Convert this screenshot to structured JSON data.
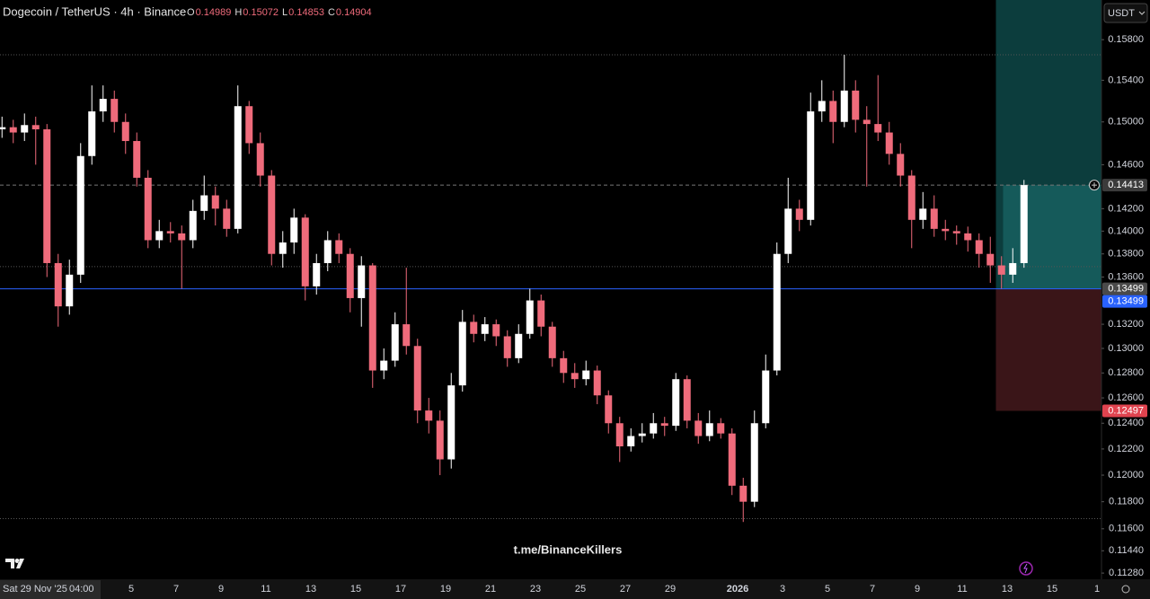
{
  "chart_data": {
    "type": "candlestick",
    "title": "Dogecoin / TetherUS · 4h · Binance",
    "ohlc_legend": [
      {
        "label": "O",
        "value": 0.14989
      },
      {
        "label": "H",
        "value": 0.15072
      },
      {
        "label": "L",
        "value": 0.14853
      },
      {
        "label": "C",
        "value": 0.14904
      }
    ],
    "currency": "USDT",
    "watermark": "t.me/BinanceKillers",
    "log_scale": true,
    "up_color": "#ffffff",
    "down_color": "#ef6b7b",
    "open": [
      0.1493,
      0.1495,
      0.149,
      0.1497,
      0.1493,
      0.1372,
      0.1335,
      0.1362,
      0.1468,
      0.151,
      0.1522,
      0.15,
      0.1482,
      0.1448,
      0.1392,
      0.14,
      0.1398,
      0.1392,
      0.1418,
      0.1432,
      0.142,
      0.1402,
      0.1515,
      0.148,
      0.145,
      0.138,
      0.139,
      0.1412,
      0.1352,
      0.1372,
      0.1392,
      0.138,
      0.1342,
      0.137,
      0.1282,
      0.129,
      0.132,
      0.1302,
      0.125,
      0.1242,
      0.1212,
      0.127,
      0.1322,
      0.1312,
      0.132,
      0.131,
      0.1292,
      0.1312,
      0.134,
      0.1318,
      0.1292,
      0.128,
      0.1275,
      0.1282,
      0.1262,
      0.124,
      0.1222,
      0.123,
      0.1232,
      0.124,
      0.1238,
      0.1275,
      0.1242,
      0.123,
      0.124,
      0.1232,
      0.1192,
      0.118,
      0.124,
      0.1282,
      0.138,
      0.142,
      0.141,
      0.151,
      0.152,
      0.15,
      0.153,
      0.1502,
      0.1498,
      0.149,
      0.147,
      0.145,
      0.141,
      0.142,
      0.1402,
      0.14,
      0.1398,
      0.1392,
      0.138,
      0.137,
      0.1362,
      0.1372
    ],
    "high": [
      0.1505,
      0.1502,
      0.1508,
      0.1505,
      0.1498,
      0.138,
      0.1375,
      0.148,
      0.1535,
      0.1535,
      0.153,
      0.1508,
      0.149,
      0.1455,
      0.141,
      0.1408,
      0.1405,
      0.1428,
      0.145,
      0.144,
      0.1428,
      0.1535,
      0.152,
      0.149,
      0.1455,
      0.14,
      0.142,
      0.1415,
      0.138,
      0.14,
      0.1398,
      0.1385,
      0.1378,
      0.1372,
      0.13,
      0.133,
      0.1368,
      0.1308,
      0.126,
      0.125,
      0.128,
      0.1332,
      0.1328,
      0.1326,
      0.1324,
      0.1315,
      0.132,
      0.135,
      0.1345,
      0.1322,
      0.1298,
      0.1288,
      0.129,
      0.1286,
      0.1266,
      0.1245,
      0.1236,
      0.124,
      0.1248,
      0.1245,
      0.128,
      0.1278,
      0.1248,
      0.125,
      0.1244,
      0.1236,
      0.1198,
      0.125,
      0.1295,
      0.139,
      0.1448,
      0.1428,
      0.1528,
      0.154,
      0.153,
      0.1565,
      0.154,
      0.1515,
      0.1545,
      0.15,
      0.148,
      0.1455,
      0.1435,
      0.1432,
      0.141,
      0.1405,
      0.1404,
      0.1398,
      0.1395,
      0.1378,
      0.1385,
      0.1446
    ],
    "low": [
      0.1485,
      0.148,
      0.1482,
      0.146,
      0.136,
      0.1318,
      0.1328,
      0.1355,
      0.146,
      0.15,
      0.149,
      0.147,
      0.144,
      0.1385,
      0.1385,
      0.139,
      0.135,
      0.1385,
      0.141,
      0.1405,
      0.1395,
      0.1398,
      0.147,
      0.144,
      0.137,
      0.1368,
      0.138,
      0.134,
      0.1345,
      0.1365,
      0.1372,
      0.133,
      0.1318,
      0.1268,
      0.1275,
      0.1285,
      0.1295,
      0.124,
      0.1232,
      0.12,
      0.1205,
      0.1265,
      0.1305,
      0.1306,
      0.1302,
      0.1285,
      0.1288,
      0.1308,
      0.131,
      0.1285,
      0.1272,
      0.1268,
      0.127,
      0.1255,
      0.1232,
      0.121,
      0.1218,
      0.1225,
      0.1228,
      0.123,
      0.1234,
      0.1236,
      0.1224,
      0.1226,
      0.1228,
      0.1185,
      0.1165,
      0.1176,
      0.1236,
      0.1278,
      0.1372,
      0.14,
      0.1405,
      0.15,
      0.148,
      0.1495,
      0.149,
      0.144,
      0.1482,
      0.146,
      0.144,
      0.1385,
      0.1402,
      0.1395,
      0.1392,
      0.1388,
      0.1382,
      0.1368,
      0.1355,
      0.135,
      0.1355,
      0.1368
    ],
    "close": [
      0.1495,
      0.149,
      0.1497,
      0.1493,
      0.1372,
      0.1335,
      0.1362,
      0.1468,
      0.151,
      0.1522,
      0.15,
      0.1482,
      0.1448,
      0.1392,
      0.14,
      0.1398,
      0.1392,
      0.1418,
      0.1432,
      0.142,
      0.1402,
      0.1515,
      0.148,
      0.145,
      0.138,
      0.139,
      0.1412,
      0.1352,
      0.1372,
      0.1392,
      0.138,
      0.1342,
      0.137,
      0.1282,
      0.129,
      0.132,
      0.1302,
      0.125,
      0.1242,
      0.1212,
      0.127,
      0.1322,
      0.1312,
      0.132,
      0.131,
      0.1292,
      0.1312,
      0.134,
      0.1318,
      0.1292,
      0.128,
      0.1275,
      0.1282,
      0.1262,
      0.124,
      0.1222,
      0.123,
      0.1232,
      0.124,
      0.1238,
      0.1275,
      0.1242,
      0.123,
      0.124,
      0.1232,
      0.1192,
      0.118,
      0.124,
      0.1282,
      0.138,
      0.142,
      0.141,
      0.151,
      0.152,
      0.15,
      0.153,
      0.1502,
      0.1498,
      0.149,
      0.147,
      0.145,
      0.141,
      0.142,
      0.1402,
      0.14,
      0.1398,
      0.1392,
      0.138,
      0.137,
      0.1362,
      0.1372,
      0.14413
    ],
    "ylim": [
      0.11236,
      0.16201
    ],
    "yticks": [
      {
        "value": 0.158,
        "label": "0.15800"
      },
      {
        "value": 0.154,
        "label": "0.15400"
      },
      {
        "value": 0.15,
        "label": "0.15000"
      },
      {
        "value": 0.146,
        "label": "0.14600"
      },
      {
        "value": 0.142,
        "label": "0.14200"
      },
      {
        "value": 0.14,
        "label": "0.14000"
      },
      {
        "value": 0.138,
        "label": "0.13800"
      },
      {
        "value": 0.136,
        "label": "0.13600"
      },
      {
        "value": 0.132,
        "label": "0.13200"
      },
      {
        "value": 0.13,
        "label": "0.13000"
      },
      {
        "value": 0.128,
        "label": "0.12800"
      },
      {
        "value": 0.126,
        "label": "0.12600"
      },
      {
        "value": 0.124,
        "label": "0.12400"
      },
      {
        "value": 0.122,
        "label": "0.12200"
      },
      {
        "value": 0.12,
        "label": "0.12000"
      },
      {
        "value": 0.118,
        "label": "0.11800"
      },
      {
        "value": 0.116,
        "label": "0.11600"
      },
      {
        "value": 0.1144,
        "label": "0.11440"
      },
      {
        "value": 0.1128,
        "label": "0.11280"
      }
    ],
    "xticks": [
      {
        "value": 0,
        "label": "Sat 29 Nov '25"
      },
      {
        "value": 12,
        "label": "5"
      },
      {
        "value": 16,
        "label": "7"
      },
      {
        "value": 20,
        "label": "9"
      },
      {
        "value": 24,
        "label": "11"
      },
      {
        "value": 28,
        "label": "13"
      },
      {
        "value": 32,
        "label": "15"
      },
      {
        "value": 36,
        "label": "17"
      },
      {
        "value": 40,
        "label": "19"
      },
      {
        "value": 44,
        "label": "21"
      },
      {
        "value": 48,
        "label": "23"
      },
      {
        "value": 52,
        "label": "25"
      },
      {
        "value": 56,
        "label": "27"
      },
      {
        "value": 60,
        "label": "29"
      },
      {
        "value": 66,
        "label": "2026"
      },
      {
        "value": 70,
        "label": "3"
      },
      {
        "value": 74,
        "label": "5"
      },
      {
        "value": 78,
        "label": "7"
      },
      {
        "value": 82,
        "label": "9"
      },
      {
        "value": 86,
        "label": "11"
      },
      {
        "value": 90,
        "label": "13"
      },
      {
        "value": 94,
        "label": "15"
      },
      {
        "value": 98,
        "label": "1"
      }
    ],
    "crosshair_time": "04:00",
    "levels": [
      0.1565,
      0.1369,
      0.11675
    ],
    "last_price_line": 0.14413,
    "horizontal_line": {
      "value": 0.13499,
      "color": "#2962ff"
    },
    "position": {
      "entry": 0.13499,
      "stop": 0.12497,
      "target": 0.163,
      "start_index": 89
    },
    "price_tags": [
      {
        "value": 0.14413,
        "color": "#3b3b3b"
      },
      {
        "value": 0.13499,
        "color": "#4a4a4a"
      },
      {
        "value": 0.13499,
        "color": "#2962ff"
      },
      {
        "value": 0.12497,
        "color": "#e0434f"
      }
    ]
  }
}
